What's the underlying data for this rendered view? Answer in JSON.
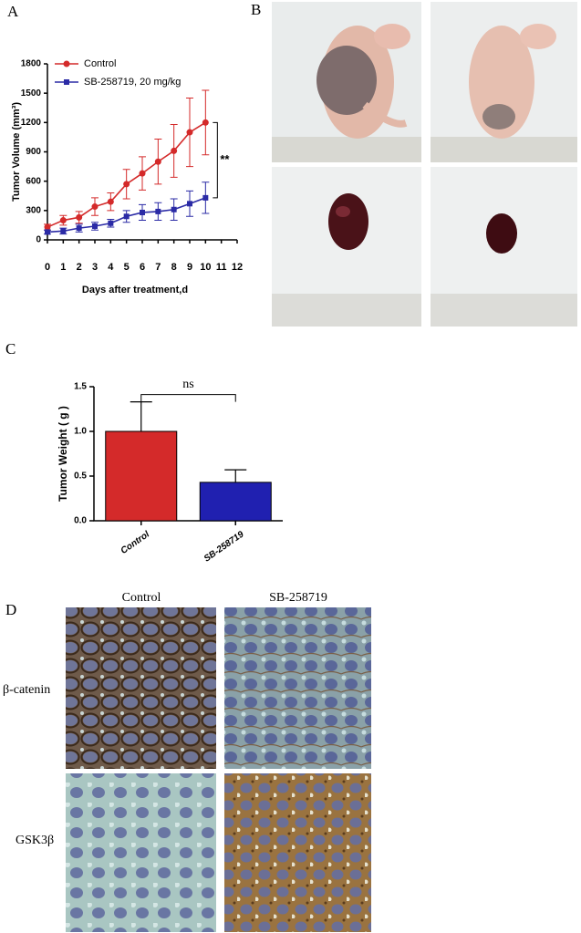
{
  "panel_labels": [
    "A",
    "B",
    "C",
    "D"
  ],
  "histology": {
    "columns": [
      "Control",
      "SB-258719"
    ],
    "rows": [
      "β-catenin",
      "GSK3β"
    ]
  },
  "chart_data": [
    {
      "type": "line",
      "x_label": "Days after treatment,d",
      "y_label": "Tumor Volume (mm³)",
      "x": [
        0,
        1,
        2,
        3,
        4,
        5,
        6,
        7,
        8,
        9,
        10
      ],
      "series": [
        {
          "name": "Control",
          "color": "#d42a2a",
          "marker": "circle",
          "values": [
            130,
            200,
            230,
            340,
            390,
            570,
            680,
            800,
            910,
            1100,
            1200
          ],
          "errors": [
            30,
            50,
            60,
            90,
            90,
            150,
            170,
            230,
            270,
            350,
            330
          ]
        },
        {
          "name": "SB-258719, 20 mg/kg",
          "color": "#2b2ba6",
          "marker": "square",
          "values": [
            80,
            90,
            120,
            140,
            170,
            240,
            280,
            290,
            310,
            370,
            430
          ],
          "errors": [
            20,
            30,
            40,
            40,
            40,
            60,
            80,
            90,
            110,
            130,
            160
          ]
        }
      ],
      "annotation": "**",
      "xlim": [
        0,
        12
      ],
      "xticks": [
        0,
        1,
        2,
        3,
        4,
        5,
        6,
        7,
        8,
        9,
        10,
        11,
        12
      ],
      "ylim": [
        0,
        1800
      ],
      "yticks": [
        0,
        300,
        600,
        900,
        1200,
        1500,
        1800
      ],
      "legend": "upper-left"
    },
    {
      "type": "bar",
      "y_label": "Tumor Weight ( g )",
      "categories": [
        "Control",
        "SB-258719"
      ],
      "values": [
        1.0,
        0.43
      ],
      "errors": [
        0.33,
        0.14
      ],
      "colors": [
        "#d42a2a",
        "#2020b0"
      ],
      "annotation": "ns",
      "ylim": [
        0,
        1.5
      ],
      "yticks": [
        {
          "value": 0,
          "label": "0.0"
        },
        {
          "value": 0.5,
          "label": "0.5"
        },
        {
          "value": 1,
          "label": "1.0"
        },
        {
          "value": 1.5,
          "label": "1.5"
        }
      ]
    }
  ]
}
